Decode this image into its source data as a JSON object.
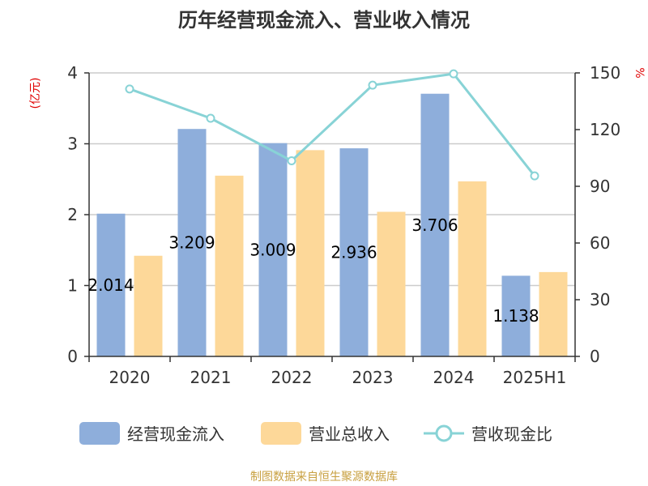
{
  "chart_data": {
    "type": "bar",
    "title": "历年经营现金流入、营业收入情况",
    "categories": [
      "2020",
      "2021",
      "2022",
      "2023",
      "2024",
      "2025H1"
    ],
    "y_left": {
      "unit": "(亿元)",
      "lim": [
        0,
        4
      ],
      "ticks": [
        "0",
        "1",
        "2",
        "3",
        "4"
      ]
    },
    "y_right": {
      "unit": "%",
      "lim": [
        0,
        150
      ],
      "ticks": [
        "0",
        "30",
        "60",
        "90",
        "120",
        "150"
      ]
    },
    "series": [
      {
        "name": "经营现金流入",
        "type": "bar",
        "axis": "left",
        "color": "#8eaedb",
        "values": [
          2.014,
          3.209,
          3.009,
          2.936,
          3.706,
          1.138
        ],
        "labels": [
          "2.014",
          "3.209",
          "3.009",
          "2.936",
          "3.706",
          "1.138"
        ]
      },
      {
        "name": "营业总收入",
        "type": "bar",
        "axis": "left",
        "color": "#fdd899",
        "values": [
          1.42,
          2.55,
          2.91,
          2.04,
          2.47,
          1.19
        ]
      },
      {
        "name": "营收现金比",
        "type": "line",
        "axis": "right",
        "color": "#88d3d6",
        "values": [
          141.5,
          126,
          103.5,
          143.5,
          149.5,
          95.5
        ]
      }
    ],
    "grid": true,
    "legend_position": "bottom"
  },
  "source_note": "制图数据来自恒生聚源数据库"
}
